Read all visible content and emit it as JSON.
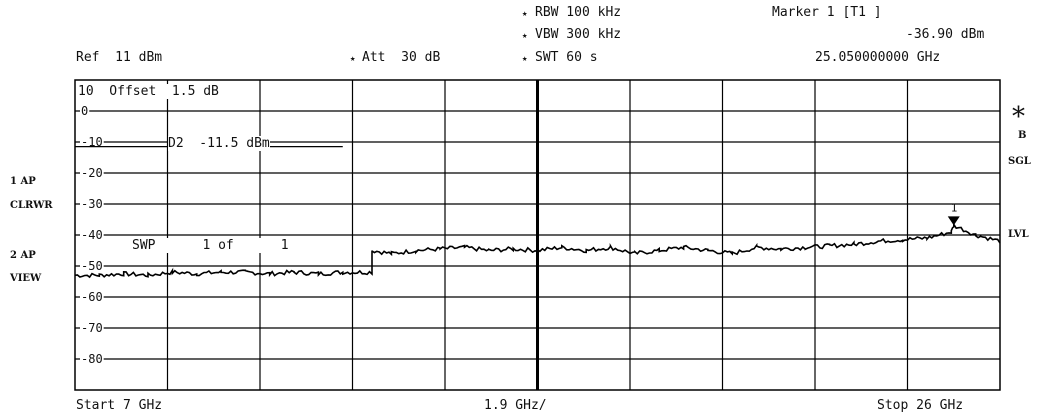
{
  "header": {
    "rbw": "RBW 100 kHz",
    "vbw": "VBW 300 kHz",
    "swt": "SWT 60 s",
    "marker_title": "Marker 1 [T1 ]",
    "marker_level": "-36.90 dBm",
    "marker_freq": "25.050000000 GHz",
    "ref": "Ref  11 dBm",
    "att": "Att  30 dB",
    "star": "★"
  },
  "side_left": {
    "ap1": "1 AP",
    "clrwr": "CLRWR",
    "ap2": "2 AP",
    "view": "VIEW"
  },
  "side_right": {
    "star": "*",
    "b": "B",
    "sgl": "SGL",
    "lvl": "LVL"
  },
  "plot_text": {
    "offset": "10  Offset  1.5 dB",
    "d2": "D2  -11.5 dBm",
    "swp": "SWP      1 of      1",
    "marker_num": "1"
  },
  "footer": {
    "start": "Start 7 GHz",
    "span": "1.9 GHz/",
    "stop": "Stop 26 GHz"
  },
  "chart_data": {
    "type": "line",
    "x_unit": "GHz",
    "y_unit": "dBm",
    "xlim": [
      7,
      26
    ],
    "ylim": [
      -90,
      10
    ],
    "x_divisions": 10,
    "y_tick_labels": [
      "0",
      "-10",
      "-20",
      "-30",
      "-40",
      "-50",
      "-60",
      "-70",
      "-80"
    ],
    "y_tick_values": [
      0,
      -10,
      -20,
      -30,
      -40,
      -50,
      -60,
      -70,
      -80
    ],
    "display_line": {
      "label": "D2",
      "value": -11.5
    },
    "grid": true,
    "trace_color": "#000000",
    "series": [
      {
        "x": [
          7.0,
          7.5,
          8.0,
          8.5,
          9.0,
          9.5,
          10.0,
          10.5,
          11.0,
          11.5,
          12.0,
          12.5,
          13.1,
          13.1,
          13.5,
          14.0,
          14.5,
          15.0,
          15.5,
          16.0,
          16.5,
          17.0,
          17.5,
          18.0,
          18.5,
          19.0,
          19.5,
          20.0,
          20.5,
          21.0,
          21.5,
          22.0,
          22.5,
          23.0,
          23.5,
          24.0,
          24.5,
          25.0,
          25.05,
          25.5,
          26.0
        ],
        "y": [
          -53,
          -53,
          -52.5,
          -53,
          -52,
          -52.5,
          -52,
          -52,
          -52.5,
          -52,
          -52.5,
          -52,
          -52,
          -45,
          -46,
          -45,
          -44.5,
          -44,
          -45,
          -44.5,
          -45,
          -44,
          -45,
          -44,
          -46,
          -45,
          -44,
          -45,
          -46,
          -44,
          -44.5,
          -44,
          -43.5,
          -43,
          -42,
          -41.5,
          -41,
          -39,
          -36.9,
          -40,
          -42
        ]
      }
    ],
    "marker": {
      "label": "1",
      "x": 25.05,
      "y": -36.9
    }
  }
}
